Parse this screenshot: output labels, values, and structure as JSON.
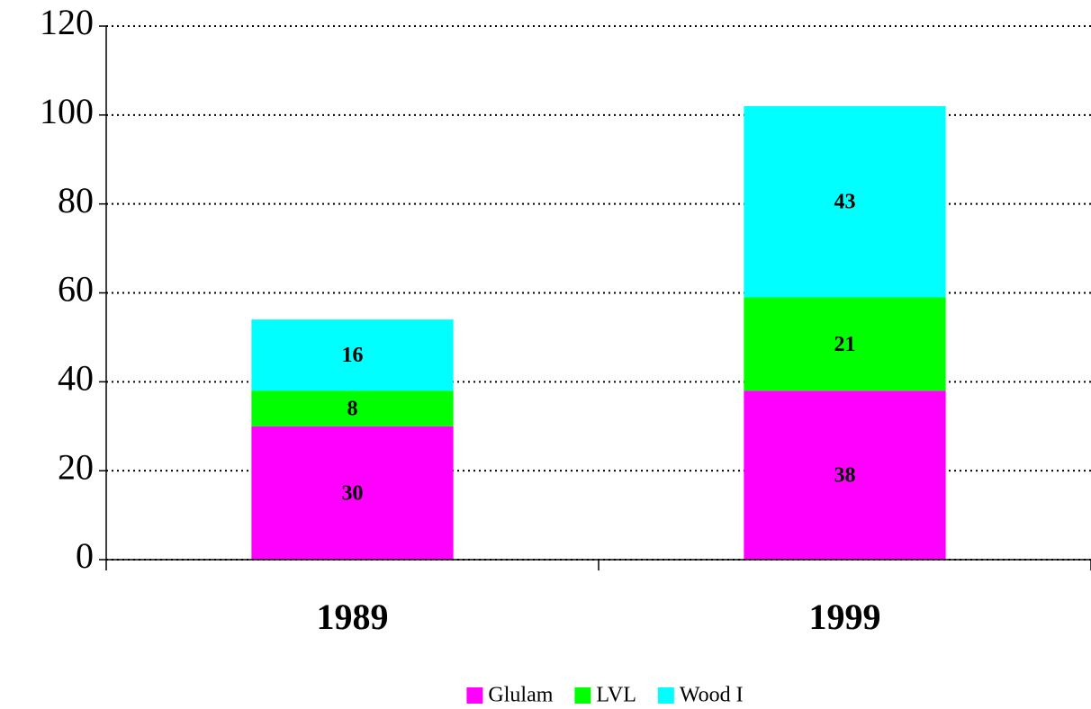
{
  "chart_data": {
    "type": "stacked_bar",
    "categories": [
      "1989",
      "1999"
    ],
    "series": [
      {
        "name": "Glulam",
        "color": "#ff00ff",
        "values": [
          30,
          38
        ]
      },
      {
        "name": "LVL",
        "color": "#00ff00",
        "values": [
          8,
          21
        ]
      },
      {
        "name": "Wood I",
        "color": "#00ffff",
        "values": [
          16,
          43
        ]
      }
    ],
    "ylim": [
      0,
      120
    ],
    "yticks": [
      0,
      20,
      40,
      60,
      80,
      100,
      120
    ],
    "grid": true,
    "legend": "bottom"
  }
}
